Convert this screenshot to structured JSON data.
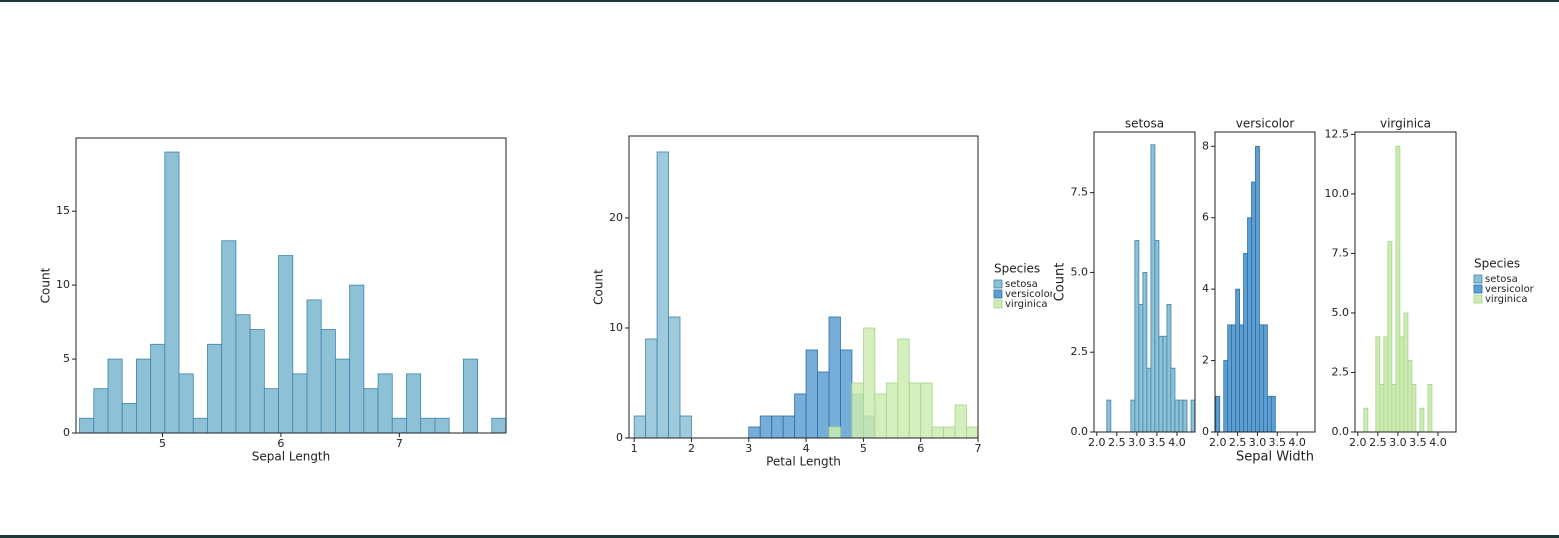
{
  "chart_data": [
    {
      "type": "histogram",
      "xlabel": "Sepal Length",
      "ylabel": "Count",
      "bins": [
        4.3,
        4.42,
        4.54,
        4.66,
        4.78,
        4.9,
        5.02,
        5.14,
        5.26,
        5.38,
        5.5,
        5.62,
        5.74,
        5.86,
        5.98,
        6.1,
        6.22,
        6.34,
        6.46,
        6.58,
        6.7,
        6.82,
        6.94,
        7.06,
        7.18,
        7.3,
        7.42,
        7.54,
        7.66,
        7.78,
        7.9
      ],
      "series": [
        {
          "color": "#8ec1d6",
          "values": [
            1,
            3,
            5,
            2,
            5,
            6,
            19,
            4,
            1,
            6,
            13,
            8,
            7,
            3,
            12,
            4,
            9,
            7,
            5,
            10,
            3,
            4,
            1,
            4,
            1,
            1,
            0,
            5,
            0,
            1
          ]
        }
      ],
      "xlim": [
        4.27,
        7.9
      ],
      "xticks": [
        5,
        6,
        7
      ],
      "ylim": [
        0,
        19.95
      ],
      "yticks": [
        0,
        5,
        10,
        15
      ]
    },
    {
      "type": "histogram",
      "xlabel": "Petal Length",
      "ylabel": "Count",
      "legend_title": "Species",
      "legend": "right",
      "bins": [
        1.0,
        1.2,
        1.4,
        1.6,
        1.8,
        2.0,
        2.2,
        2.4,
        2.6,
        2.8,
        3.0,
        3.2,
        3.4,
        3.6,
        3.8,
        4.0,
        4.2,
        4.4,
        4.6,
        4.8,
        5.0,
        5.2,
        5.4,
        5.6,
        5.8,
        6.0,
        6.2,
        6.4,
        6.6,
        6.8,
        7.0
      ],
      "series": [
        {
          "name": "setosa",
          "color": "#8ec1d6",
          "values": [
            2,
            9,
            26,
            11,
            2,
            0,
            0,
            0,
            0,
            0,
            0,
            0,
            0,
            0,
            0,
            0,
            0,
            0,
            0,
            0,
            0,
            0,
            0,
            0,
            0,
            0,
            0,
            0,
            0,
            0
          ]
        },
        {
          "name": "versicolor",
          "color": "#5e9fd2",
          "values": [
            0,
            0,
            0,
            0,
            0,
            0,
            0,
            0,
            0,
            0,
            1,
            2,
            2,
            2,
            4,
            8,
            6,
            11,
            8,
            4,
            2,
            0,
            0,
            0,
            0,
            0,
            0,
            0,
            0,
            0
          ]
        },
        {
          "name": "virginica",
          "color": "#cdebb2",
          "values": [
            0,
            0,
            0,
            0,
            0,
            0,
            0,
            0,
            0,
            0,
            0,
            0,
            0,
            0,
            0,
            0,
            0,
            1,
            0,
            5,
            10,
            4,
            5,
            9,
            5,
            5,
            1,
            1,
            3,
            1
          ]
        }
      ],
      "xlim": [
        0.91,
        7.0
      ],
      "xticks": [
        1,
        2,
        3,
        4,
        5,
        6,
        7
      ],
      "ylim": [
        0,
        27.45
      ],
      "yticks": [
        0,
        10,
        20
      ]
    },
    {
      "type": "facet_histogram",
      "xlabel": "Sepal Width",
      "ylabel": "Count",
      "legend_title": "Species",
      "legend": "right",
      "bins": [
        1.95,
        2.05,
        2.15,
        2.25,
        2.35,
        2.45,
        2.55,
        2.65,
        2.75,
        2.85,
        2.95,
        3.05,
        3.15,
        3.25,
        3.35,
        3.45,
        3.55,
        3.65,
        3.75,
        3.85,
        3.95,
        4.05,
        4.15,
        4.25,
        4.35,
        4.45
      ],
      "xlim": [
        1.93,
        4.45
      ],
      "xticks": [
        {
          "value": 2,
          "label": "2.0"
        },
        {
          "value": 2.5,
          "label": "2.5"
        },
        {
          "value": 3,
          "label": "3.0"
        },
        {
          "value": 3.5,
          "label": "3.5"
        },
        {
          "value": 4,
          "label": "4.0"
        }
      ],
      "series": [
        {
          "name": "setosa",
          "color": "#8ec1d6",
          "values": [
            0,
            0,
            0,
            1,
            0,
            0,
            0,
            0,
            0,
            1,
            6,
            4,
            5,
            2,
            9,
            6,
            3,
            3,
            4,
            2,
            1,
            1,
            1,
            0,
            1
          ],
          "ylim": [
            0,
            9.4
          ],
          "yticks": [
            {
              "value": 0,
              "label": "0.0"
            },
            {
              "value": 2.5,
              "label": "2.5"
            },
            {
              "value": 5,
              "label": "5.0"
            },
            {
              "value": 7.5,
              "label": "7.5"
            }
          ]
        },
        {
          "name": "versicolor",
          "color": "#5e9fd2",
          "values": [
            1,
            0,
            2,
            3,
            3,
            4,
            3,
            5,
            6,
            7,
            8,
            3,
            3,
            1,
            1,
            0,
            0,
            0,
            0,
            0,
            0,
            0,
            0,
            0,
            0
          ],
          "ylim": [
            0,
            8.4
          ],
          "yticks": [
            0,
            2,
            4,
            6,
            8
          ]
        },
        {
          "name": "virginica",
          "color": "#cdebb2",
          "values": [
            0,
            0,
            1,
            0,
            0,
            4,
            2,
            4,
            8,
            2,
            12,
            4,
            5,
            3,
            2,
            0,
            1,
            0,
            2,
            0,
            0,
            0,
            0,
            0,
            0
          ],
          "ylim": [
            0,
            12.6
          ],
          "yticks": [
            {
              "value": 0,
              "label": "0.0"
            },
            {
              "value": 2.5,
              "label": "2.5"
            },
            {
              "value": 5,
              "label": "5.0"
            },
            {
              "value": 7.5,
              "label": "7.5"
            },
            {
              "value": 10,
              "label": "10.0"
            },
            {
              "value": 12.5,
              "label": "12.5"
            }
          ]
        }
      ]
    }
  ]
}
